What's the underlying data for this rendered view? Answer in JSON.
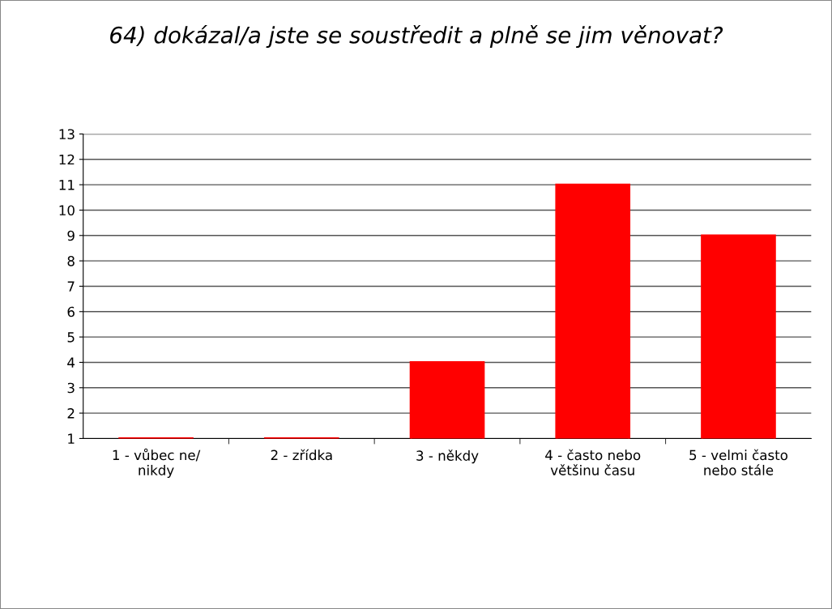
{
  "chart_data": {
    "type": "bar",
    "title": "64) dokázal/a jste se soustředit a plně se jim věnovat?",
    "categories": [
      "1 - vůbec ne/\nnikdy",
      "2 - zřídka",
      "3 - někdy",
      "4 - často nebo\nvětšinu času",
      "5 - velmi často\nnebo stále"
    ],
    "values": [
      1,
      1,
      4,
      11,
      9
    ],
    "color": "#ff0000",
    "ylim": [
      1,
      13
    ],
    "yticks": [
      1,
      2,
      3,
      4,
      5,
      6,
      7,
      8,
      9,
      10,
      11,
      12,
      13
    ],
    "grid": "y",
    "legend": false
  }
}
